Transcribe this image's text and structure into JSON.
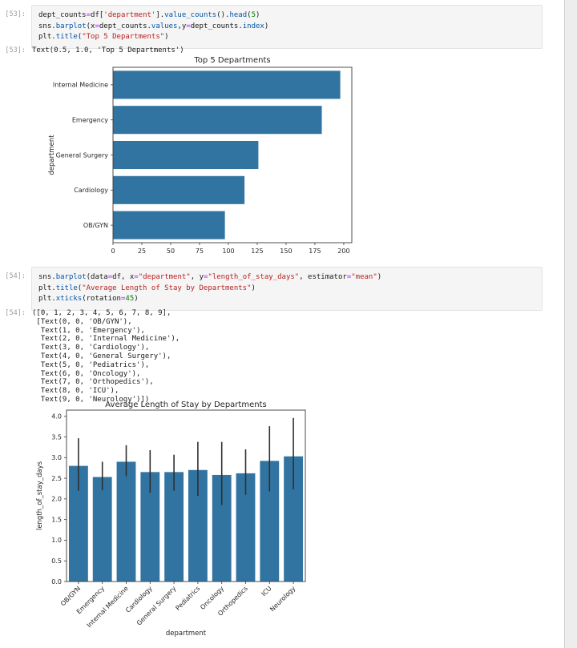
{
  "colors": {
    "bar": "#3274a1",
    "error_bar": "#2f2f2f",
    "spine": "#3b3b3b",
    "chart_text": "#262626",
    "cell_background": "#f5f5f5",
    "prompt": "#9d9d9d",
    "string_token": "#ba2121",
    "number_token": "#008000",
    "property_token": "#0055aa",
    "operator_token": "#aa22ff"
  },
  "cells": [
    {
      "prompt": "[53]:",
      "out_prompt": "[53]:",
      "code_lines": [
        [
          [
            "dept_counts",
            ""
          ],
          [
            "=",
            "o"
          ],
          [
            "df",
            ""
          ],
          [
            "[",
            ""
          ],
          [
            "'department'",
            "s"
          ],
          [
            "]",
            ""
          ],
          [
            ".",
            ""
          ],
          [
            "value_counts",
            "p"
          ],
          [
            "().",
            ""
          ],
          [
            "head",
            "p"
          ],
          [
            "(",
            ""
          ],
          [
            "5",
            "n"
          ],
          [
            ")",
            ""
          ]
        ],
        [
          [
            "sns",
            ""
          ],
          [
            ".",
            ""
          ],
          [
            "barplot",
            "p"
          ],
          [
            "(",
            ""
          ],
          [
            "x",
            ""
          ],
          [
            "=",
            "o"
          ],
          [
            "dept_counts",
            ""
          ],
          [
            ".",
            ""
          ],
          [
            "values",
            "p"
          ],
          [
            ",",
            ""
          ],
          [
            "y",
            ""
          ],
          [
            "=",
            "o"
          ],
          [
            "dept_counts",
            ""
          ],
          [
            ".",
            ""
          ],
          [
            "index",
            "p"
          ],
          [
            ")",
            ""
          ]
        ],
        [
          [
            "plt",
            ""
          ],
          [
            ".",
            ""
          ],
          [
            "title",
            "p"
          ],
          [
            "(",
            ""
          ],
          [
            "\"Top 5 Departments\"",
            "s"
          ],
          [
            ")",
            ""
          ]
        ]
      ],
      "output_text": "Text(0.5, 1.0, 'Top 5 Departments')"
    },
    {
      "prompt": "[54]:",
      "out_prompt": "[54]:",
      "code_lines": [
        [
          [
            "sns",
            ""
          ],
          [
            ".",
            ""
          ],
          [
            "barplot",
            "p"
          ],
          [
            "(",
            ""
          ],
          [
            "data",
            ""
          ],
          [
            "=",
            "o"
          ],
          [
            "df",
            ""
          ],
          [
            ", ",
            ""
          ],
          [
            "x",
            ""
          ],
          [
            "=",
            "o"
          ],
          [
            "\"department\"",
            "s"
          ],
          [
            ", ",
            ""
          ],
          [
            "y",
            ""
          ],
          [
            "=",
            "o"
          ],
          [
            "\"length_of_stay_days\"",
            "s"
          ],
          [
            ", ",
            ""
          ],
          [
            "estimator",
            ""
          ],
          [
            "=",
            "o"
          ],
          [
            "\"mean\"",
            "s"
          ],
          [
            ")",
            ""
          ]
        ],
        [
          [
            "plt",
            ""
          ],
          [
            ".",
            ""
          ],
          [
            "title",
            "p"
          ],
          [
            "(",
            ""
          ],
          [
            "\"Average Length of Stay by Departments\"",
            "s"
          ],
          [
            ")",
            ""
          ]
        ],
        [
          [
            "plt",
            ""
          ],
          [
            ".",
            ""
          ],
          [
            "xticks",
            "p"
          ],
          [
            "(",
            ""
          ],
          [
            "rotation",
            ""
          ],
          [
            "=",
            "o"
          ],
          [
            "45",
            "n"
          ],
          [
            ")",
            ""
          ]
        ]
      ],
      "output_text": [
        "([0, 1, 2, 3, 4, 5, 6, 7, 8, 9],",
        " [Text(0, 0, 'OB/GYN'),",
        "  Text(1, 0, 'Emergency'),",
        "  Text(2, 0, 'Internal Medicine'),",
        "  Text(3, 0, 'Cardiology'),",
        "  Text(4, 0, 'General Surgery'),",
        "  Text(5, 0, 'Pediatrics'),",
        "  Text(6, 0, 'Oncology'),",
        "  Text(7, 0, 'Orthopedics'),",
        "  Text(8, 0, 'ICU'),",
        "  Text(9, 0, 'Neurology')])"
      ]
    }
  ],
  "chart_data": [
    {
      "type": "bar",
      "orientation": "horizontal",
      "title": "Top 5 Departments",
      "categories": [
        "Internal Medicine",
        "Emergency",
        "General Surgery",
        "Cardiology",
        "OB/GYN"
      ],
      "values": [
        197,
        181,
        126,
        114,
        97
      ],
      "xlabel": "",
      "ylabel": "department",
      "xlim": [
        0,
        207
      ],
      "xticks": [
        0,
        25,
        50,
        75,
        100,
        125,
        150,
        175,
        200
      ],
      "grid": false,
      "legend": false
    },
    {
      "type": "bar",
      "orientation": "vertical",
      "title": "Average Length of Stay by Departments",
      "categories": [
        "OB/GYN",
        "Emergency",
        "Internal Medicine",
        "Cardiology",
        "General Surgery",
        "Pediatrics",
        "Oncology",
        "Orthopedics",
        "ICU",
        "Neurology"
      ],
      "values": [
        2.8,
        2.53,
        2.9,
        2.65,
        2.65,
        2.7,
        2.58,
        2.62,
        2.92,
        3.03
      ],
      "error_low": [
        2.2,
        2.21,
        2.55,
        2.15,
        2.2,
        2.07,
        1.85,
        2.1,
        2.18,
        2.23
      ],
      "error_high": [
        3.47,
        2.9,
        3.3,
        3.18,
        3.07,
        3.38,
        3.38,
        3.2,
        3.76,
        3.96
      ],
      "xlabel": "department",
      "ylabel": "length_of_stay_days",
      "ylim": [
        0,
        4.15
      ],
      "yticks": [
        0.0,
        0.5,
        1.0,
        1.5,
        2.0,
        2.5,
        3.0,
        3.5,
        4.0
      ],
      "xtick_rotation": 45,
      "grid": false,
      "legend": false
    }
  ]
}
